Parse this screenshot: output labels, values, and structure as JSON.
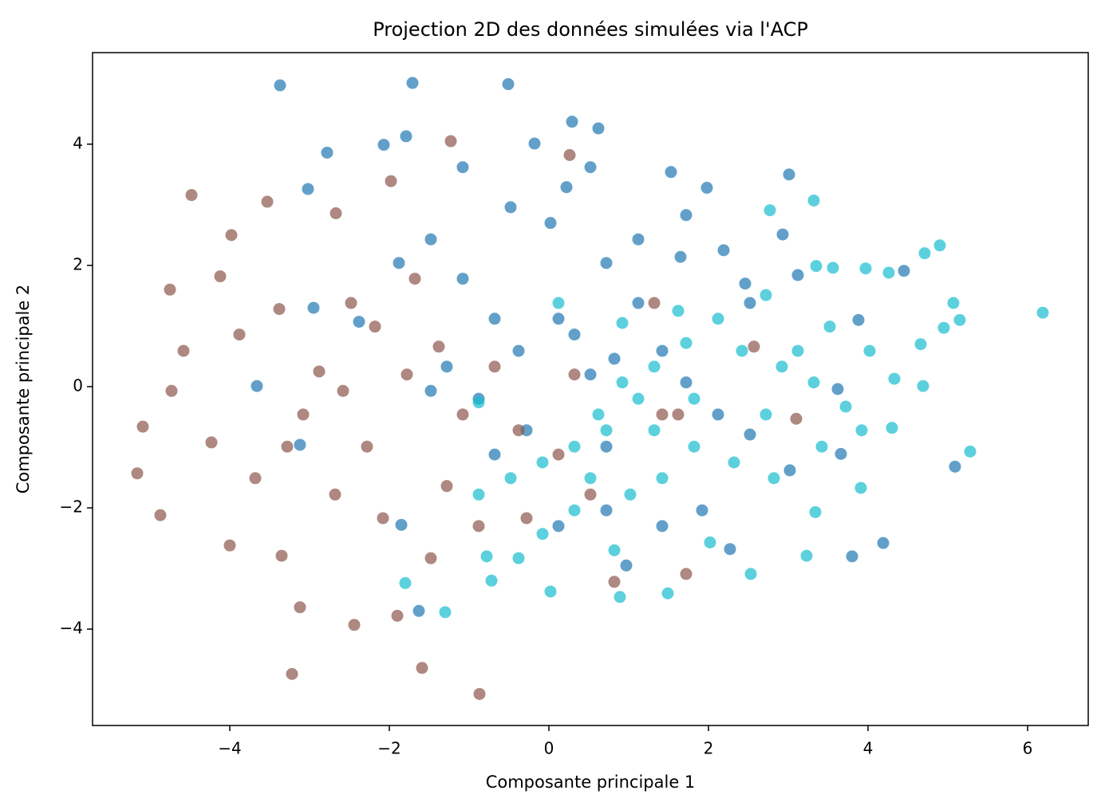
{
  "chart_data": {
    "type": "scatter",
    "title": "Projection 2D des données simulées via l'ACP",
    "x_label": "Composante principale 1",
    "y_label": "Composante principale 2",
    "xlim": [
      -5.72,
      6.76
    ],
    "ylim": [
      -5.59,
      5.51
    ],
    "xticks": [
      {
        "value": -4,
        "label": "−4"
      },
      {
        "value": -2,
        "label": "−2"
      },
      0,
      2,
      4,
      6
    ],
    "yticks": [
      {
        "value": -4,
        "label": "−4"
      },
      {
        "value": -2,
        "label": "−2"
      },
      0,
      2,
      4
    ],
    "opacity": 0.7,
    "series": [
      {
        "color": "#1f77b4",
        "x": [
          -3.37,
          -1.71,
          -0.51,
          0.29,
          0.62,
          -1.79,
          -2.78,
          -2.07,
          -3.02,
          1.53,
          1.98,
          3.01,
          2.93,
          2.19,
          1.65,
          2.46,
          4.45,
          5.09,
          4.19,
          3.8,
          2.27,
          0.97,
          -1.63,
          -1.85,
          -3.66,
          -3.12,
          -2.95,
          -2.38,
          -1.88,
          -1.48,
          -1.08,
          -0.68,
          -0.38,
          0.12,
          0.32,
          0.52,
          0.82,
          1.12,
          1.42,
          1.72,
          2.12,
          2.52,
          1.92,
          1.42,
          0.72,
          -0.28,
          -0.88,
          -1.28,
          -0.48,
          0.02,
          0.72,
          1.12,
          1.72,
          3.12,
          2.52,
          3.02,
          3.66,
          3.62,
          3.88,
          0.72,
          0.12,
          -0.68,
          -1.48,
          -1.08,
          -0.18,
          0.22,
          0.52
        ],
        "y": [
          4.97,
          5.01,
          4.99,
          4.37,
          4.26,
          4.13,
          3.86,
          3.99,
          3.26,
          3.54,
          3.28,
          3.5,
          2.51,
          2.25,
          2.14,
          1.7,
          1.91,
          -1.32,
          -2.58,
          -2.8,
          -2.68,
          -2.95,
          -3.7,
          -2.28,
          0.01,
          -0.96,
          1.3,
          1.07,
          2.04,
          2.43,
          1.78,
          1.12,
          0.59,
          1.12,
          0.86,
          0.2,
          0.46,
          1.38,
          0.59,
          0.07,
          -0.46,
          -0.79,
          -2.04,
          -2.3,
          -0.99,
          -0.72,
          -0.2,
          0.33,
          2.96,
          2.7,
          2.04,
          2.43,
          2.83,
          1.84,
          1.38,
          -1.38,
          -1.11,
          -0.04,
          1.1,
          -2.04,
          -2.3,
          -1.12,
          -0.07,
          3.62,
          4.01,
          3.29,
          3.62
        ]
      },
      {
        "color": "#8c564b",
        "x": [
          -4.48,
          -4.75,
          -5.16,
          -4.87,
          -5.09,
          -3.98,
          -4.12,
          -3.22,
          -0.87,
          -1.59,
          -2.44,
          -1.9,
          -3.12,
          -3.35,
          -4.0,
          -3.53,
          -2.67,
          -1.98,
          -1.23,
          0.26,
          -3.88,
          -3.38,
          -2.88,
          -2.58,
          -2.18,
          -1.68,
          -1.38,
          -1.08,
          -0.68,
          -0.38,
          0.12,
          0.52,
          1.42,
          1.72,
          2.57,
          3.1,
          1.32,
          -2.08,
          -2.68,
          -3.28,
          -3.68,
          -4.23,
          -4.58,
          -4.73,
          -1.48,
          -1.28,
          -0.88,
          -0.28,
          -2.28,
          -3.08,
          -1.78,
          -2.48,
          0.82,
          1.62,
          0.32
        ],
        "y": [
          3.16,
          1.6,
          -1.43,
          -2.12,
          -0.66,
          2.5,
          1.82,
          -4.74,
          -5.07,
          -4.64,
          -3.93,
          -3.78,
          -3.64,
          -2.79,
          -2.62,
          3.05,
          2.86,
          3.39,
          4.05,
          3.82,
          0.86,
          1.28,
          0.25,
          -0.07,
          0.99,
          1.78,
          0.66,
          -0.46,
          0.33,
          -0.72,
          -1.12,
          -1.78,
          -0.46,
          -3.09,
          0.66,
          -0.53,
          1.38,
          -2.17,
          -1.78,
          -0.99,
          -1.51,
          -0.92,
          0.59,
          -0.07,
          -2.83,
          -1.64,
          -2.3,
          -2.17,
          -0.99,
          -0.46,
          0.2,
          1.38,
          -3.22,
          -0.46,
          0.2
        ]
      },
      {
        "color": "#17becf",
        "x": [
          6.19,
          5.28,
          4.9,
          4.71,
          5.07,
          5.15,
          4.95,
          4.69,
          4.66,
          4.33,
          4.3,
          3.91,
          3.34,
          3.23,
          2.53,
          1.49,
          0.89,
          0.02,
          -1.3,
          -1.8,
          -0.72,
          3.32,
          2.77,
          3.35,
          3.97,
          3.56,
          4.26,
          2.72,
          2.12,
          1.72,
          1.32,
          1.12,
          0.72,
          0.32,
          -0.08,
          -0.48,
          -0.88,
          -0.88,
          0.12,
          0.92,
          1.62,
          2.42,
          2.92,
          3.32,
          3.72,
          3.92,
          3.42,
          2.82,
          2.32,
          1.82,
          1.42,
          1.02,
          0.52,
          0.82,
          0.32,
          -0.08,
          -0.38,
          -0.78,
          2.02,
          2.72,
          3.12,
          4.02,
          3.52,
          1.82,
          1.32,
          0.92,
          0.62
        ],
        "y": [
          1.22,
          -1.07,
          2.33,
          2.2,
          1.38,
          1.1,
          0.97,
          0.01,
          0.7,
          0.13,
          -0.68,
          -1.67,
          -2.07,
          -2.79,
          -3.09,
          -3.41,
          -3.47,
          -3.38,
          -3.72,
          -3.24,
          -3.2,
          3.07,
          2.91,
          1.99,
          1.95,
          1.96,
          1.88,
          1.51,
          1.12,
          0.72,
          0.33,
          -0.2,
          -0.72,
          -0.99,
          -1.25,
          -1.51,
          -1.78,
          -0.26,
          1.38,
          1.05,
          1.25,
          0.59,
          0.33,
          0.07,
          -0.33,
          -0.72,
          -0.99,
          -1.51,
          -1.25,
          -0.99,
          -1.51,
          -1.78,
          -1.51,
          -2.7,
          -2.04,
          -2.43,
          -2.83,
          -2.8,
          -2.57,
          -0.46,
          0.59,
          0.59,
          0.99,
          -0.2,
          -0.72,
          0.07,
          -0.46
        ]
      }
    ]
  }
}
